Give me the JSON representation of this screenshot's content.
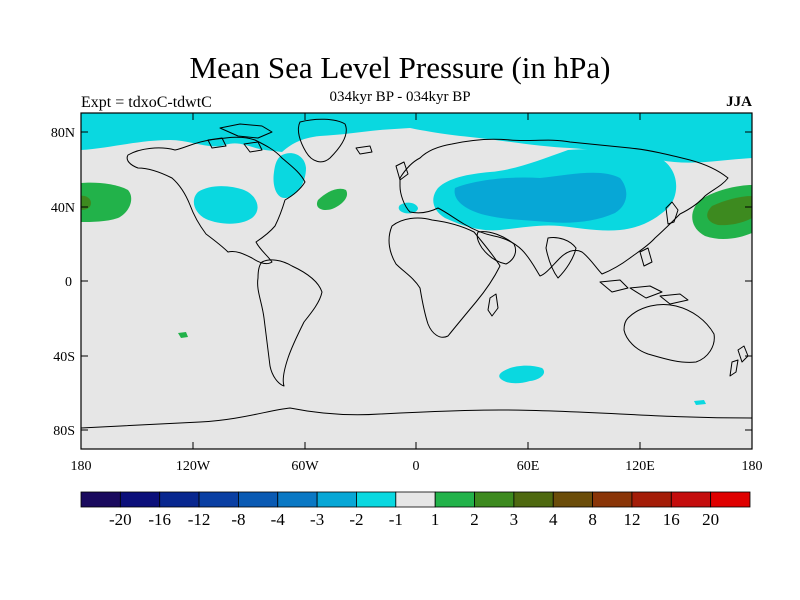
{
  "header": {
    "title": "Mean Sea Level Pressure (in hPa)",
    "subtitle": "034kyr BP - 034kyr BP",
    "left_label": "Expt = tdxoC-tdwtC",
    "right_label": "JJA"
  },
  "axes": {
    "y_ticks": [
      "80N",
      "40N",
      "0",
      "40S",
      "80S"
    ],
    "x_ticks": [
      "180",
      "120W",
      "60W",
      "0",
      "60E",
      "120E",
      "180"
    ]
  },
  "colorbar": {
    "labels": [
      "-20",
      "-16",
      "-12",
      "-8",
      "-4",
      "-3",
      "-2",
      "-1",
      "1",
      "2",
      "3",
      "4",
      "8",
      "12",
      "16",
      "20"
    ],
    "colors": [
      "#1a0a5e",
      "#0b0f7a",
      "#08278f",
      "#0a3fa3",
      "#0a5ab3",
      "#0a78c4",
      "#07a7d6",
      "#0ad8e0",
      "#e6e6e6",
      "#22b24a",
      "#3d8a1f",
      "#4e6910",
      "#6b4d0a",
      "#8a3508",
      "#a41d08",
      "#c40d0d",
      "#df0000"
    ]
  },
  "map": {
    "background_color": "#e6e6e6",
    "region_colors": {
      "light_cyan": "#0ad8e0",
      "cyan": "#07a7d6",
      "light_green": "#22b24a",
      "dark_green": "#3d8a1f"
    }
  }
}
